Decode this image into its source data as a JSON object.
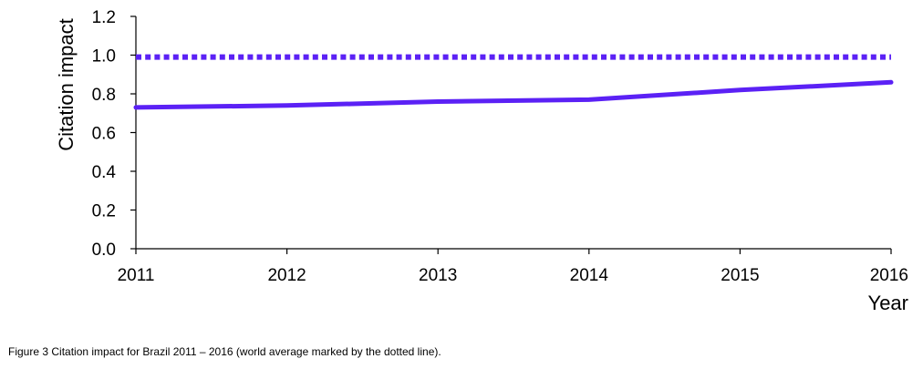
{
  "chart_data": {
    "type": "line",
    "title": "",
    "xlabel": "Year",
    "ylabel": "Citation impact",
    "x": [
      2011,
      2012,
      2013,
      2014,
      2015,
      2016
    ],
    "x_tick_labels": [
      "2011",
      "2012",
      "2013",
      "2014",
      "2015",
      "2016"
    ],
    "y_tick_labels": [
      "0.0",
      "0.2",
      "0.4",
      "0.6",
      "0.8",
      "1.0",
      "1.2"
    ],
    "ylim": [
      0,
      1.2
    ],
    "xlim": [
      2011,
      2016
    ],
    "grid": false,
    "legend": "none",
    "series": [
      {
        "values": [
          0.73,
          0.74,
          0.76,
          0.77,
          0.82,
          0.86
        ],
        "color": "#5b21f5",
        "style": "solid"
      },
      {
        "values": [
          0.99,
          0.99,
          0.99,
          0.99,
          0.99,
          0.99
        ],
        "color": "#5b21f5",
        "style": "dotted"
      }
    ]
  },
  "caption": "Figure 3 Citation impact for Brazil 2011 – 2016 (world average marked by the dotted line)."
}
